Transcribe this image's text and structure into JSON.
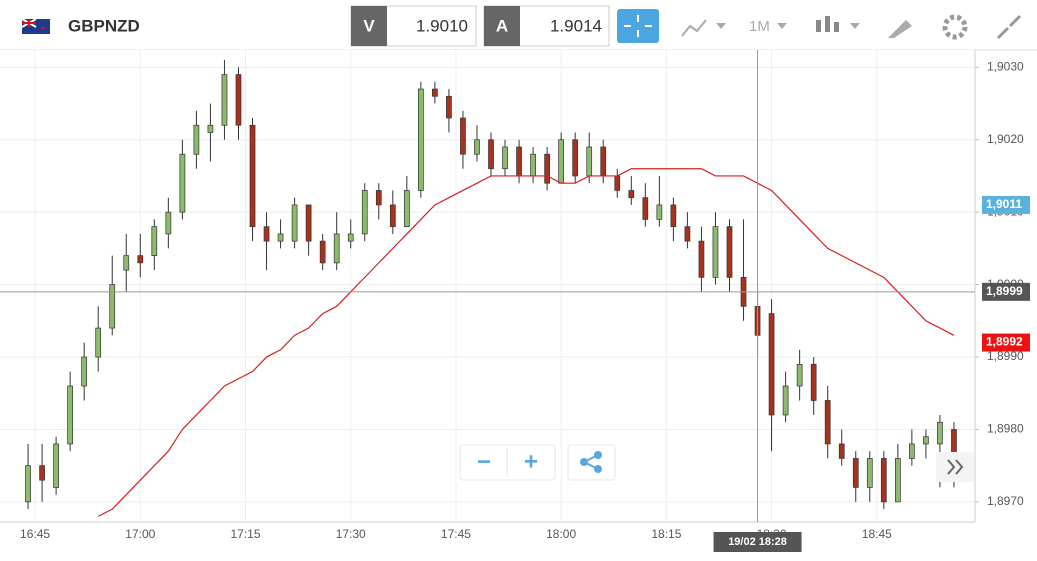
{
  "toolbar": {
    "symbol": "GBPNZD",
    "bid_label": "V",
    "bid": "1.9010",
    "ask_label": "A",
    "ask": "1.9014",
    "timeframe": "1M"
  },
  "zoom_buttons": {
    "minus": "−",
    "plus": "+"
  },
  "chart_data": {
    "type": "candlestick",
    "x": [
      "16:44",
      "16:46",
      "16:48",
      "16:50",
      "16:52",
      "16:54",
      "16:56",
      "16:58",
      "17:00",
      "17:02",
      "17:04",
      "17:06",
      "17:08",
      "17:10",
      "17:12",
      "17:14",
      "17:16",
      "17:18",
      "17:20",
      "17:22",
      "17:24",
      "17:26",
      "17:28",
      "17:30",
      "17:32",
      "17:34",
      "17:36",
      "17:38",
      "17:40",
      "17:42",
      "17:44",
      "17:46",
      "17:48",
      "17:50",
      "17:52",
      "17:54",
      "17:56",
      "17:58",
      "18:00",
      "18:02",
      "18:04",
      "18:06",
      "18:08",
      "18:10",
      "18:12",
      "18:14",
      "18:16",
      "18:18",
      "18:20",
      "18:22",
      "18:24",
      "18:26",
      "18:28",
      "18:30",
      "18:32",
      "18:34",
      "18:36",
      "18:38",
      "18:40",
      "18:42",
      "18:44",
      "18:46",
      "18:48",
      "18:50",
      "18:52",
      "18:54",
      "18:56"
    ],
    "open": [
      1.897,
      1.8975,
      1.8972,
      1.8978,
      1.8986,
      1.899,
      1.8994,
      1.9002,
      1.9004,
      1.9004,
      1.9007,
      1.901,
      1.9018,
      1.9021,
      1.9022,
      1.9029,
      1.9022,
      1.9008,
      1.9006,
      1.9006,
      1.9011,
      1.9006,
      1.9003,
      1.9006,
      1.9007,
      1.9013,
      1.9011,
      1.9008,
      1.9013,
      1.9027,
      1.9026,
      1.9023,
      1.9018,
      1.902,
      1.9016,
      1.9019,
      1.9015,
      1.9018,
      1.9014,
      1.902,
      1.9015,
      1.9019,
      1.9015,
      1.9013,
      1.9012,
      1.9009,
      1.9011,
      1.9008,
      1.9006,
      1.9001,
      1.9008,
      1.9001,
      1.8997,
      1.8996,
      1.8982,
      1.8986,
      1.8989,
      1.8984,
      1.8978,
      1.8976,
      1.8972,
      1.8976,
      1.897,
      1.8976,
      1.8978,
      1.8978,
      1.898
    ],
    "high": [
      1.8978,
      1.8978,
      1.8979,
      1.8988,
      1.8992,
      1.8997,
      1.9004,
      1.9007,
      1.9007,
      1.9009,
      1.9012,
      1.902,
      1.9024,
      1.9025,
      1.9031,
      1.903,
      1.9023,
      1.901,
      1.9009,
      1.9012,
      1.9011,
      1.9007,
      1.901,
      1.9009,
      1.9014,
      1.9014,
      1.9013,
      1.9015,
      1.9028,
      1.9028,
      1.9027,
      1.9024,
      1.9022,
      1.9021,
      1.902,
      1.902,
      1.9019,
      1.9019,
      1.9021,
      1.9021,
      1.9021,
      1.902,
      1.9016,
      1.9015,
      1.9014,
      1.9015,
      1.9012,
      1.901,
      1.9008,
      1.901,
      1.9009,
      1.9009,
      1.8999,
      1.8998,
      1.8988,
      1.8991,
      1.899,
      1.8986,
      1.898,
      1.8977,
      1.8977,
      1.8977,
      1.8978,
      1.898,
      1.898,
      1.8982,
      1.8981
    ],
    "low": [
      1.8969,
      1.897,
      1.8971,
      1.8977,
      1.8984,
      1.8988,
      1.8993,
      1.8999,
      1.9001,
      1.9002,
      1.9005,
      1.9009,
      1.9016,
      1.9017,
      1.902,
      1.902,
      1.9006,
      1.9002,
      1.9005,
      1.9005,
      1.9004,
      1.9002,
      1.9002,
      1.9005,
      1.9006,
      1.9009,
      1.9007,
      1.9008,
      1.9012,
      1.9025,
      1.9021,
      1.9016,
      1.9017,
      1.9015,
      1.9015,
      1.9014,
      1.9014,
      1.9013,
      1.9014,
      1.9014,
      1.9014,
      1.9014,
      1.9012,
      1.9011,
      1.9008,
      1.9008,
      1.9006,
      1.9005,
      1.8999,
      1.9,
      1.8999,
      1.8995,
      1.899,
      1.8977,
      1.8981,
      1.8984,
      1.8982,
      1.8976,
      1.8975,
      1.897,
      1.897,
      1.8969,
      1.897,
      1.8975,
      1.8976,
      1.8972,
      1.8972
    ],
    "close": [
      1.8975,
      1.8973,
      1.8978,
      1.8986,
      1.899,
      1.8994,
      1.9,
      1.9004,
      1.9003,
      1.9008,
      1.901,
      1.9018,
      1.9022,
      1.9022,
      1.9029,
      1.9022,
      1.9008,
      1.9006,
      1.9007,
      1.9011,
      1.9006,
      1.9003,
      1.9007,
      1.9007,
      1.9013,
      1.9011,
      1.9008,
      1.9013,
      1.9027,
      1.9026,
      1.9023,
      1.9018,
      1.902,
      1.9016,
      1.9019,
      1.9015,
      1.9018,
      1.9014,
      1.902,
      1.9015,
      1.9019,
      1.9015,
      1.9013,
      1.9012,
      1.9009,
      1.9011,
      1.9008,
      1.9006,
      1.9001,
      1.9008,
      1.9001,
      1.8997,
      1.8993,
      1.8982,
      1.8986,
      1.8989,
      1.8984,
      1.8978,
      1.8976,
      1.8972,
      1.8976,
      1.897,
      1.8976,
      1.8978,
      1.8979,
      1.8981,
      1.8973
    ],
    "up_color": "#8dbb6e",
    "down_color": "#a8321d",
    "moving_average": {
      "color": "#d42020",
      "values": [
        null,
        null,
        null,
        null,
        null,
        1.8968,
        1.8969,
        1.8971,
        1.8973,
        1.8975,
        1.8977,
        1.898,
        1.8982,
        1.8984,
        1.8986,
        1.8987,
        1.8988,
        1.899,
        1.8991,
        1.8993,
        1.8994,
        1.8996,
        1.8997,
        1.8999,
        1.9001,
        1.9003,
        1.9005,
        1.9007,
        1.9009,
        1.9011,
        1.9012,
        1.9013,
        1.9014,
        1.9015,
        1.9015,
        1.9015,
        1.9015,
        1.9015,
        1.9014,
        1.9014,
        1.9015,
        1.9015,
        1.9015,
        1.9016,
        1.9016,
        1.9016,
        1.9016,
        1.9016,
        1.9016,
        1.9015,
        1.9015,
        1.9015,
        1.9014,
        1.9013,
        1.9011,
        1.9009,
        1.9007,
        1.9005,
        1.9004,
        1.9003,
        1.9002,
        1.9001,
        1.8999,
        1.8997,
        1.8995,
        1.8994,
        1.8993
      ]
    },
    "xticks": [
      "16:45",
      "17:00",
      "17:15",
      "17:30",
      "17:45",
      "18:00",
      "18:15",
      "18:30",
      "18:45"
    ],
    "xlim": [
      "16:40",
      "18:59"
    ],
    "ylim": [
      1.89675,
      1.90317
    ],
    "yticks": [
      {
        "value": 1.897,
        "label": "1,8970"
      },
      {
        "value": 1.898,
        "label": "1,8980"
      },
      {
        "value": 1.899,
        "label": "1,8990"
      },
      {
        "value": 1.9,
        "label": "1,9000"
      },
      {
        "value": 1.901,
        "label": "1,9010"
      },
      {
        "value": 1.902,
        "label": "1,9020"
      },
      {
        "value": 1.903,
        "label": "1,9030"
      }
    ],
    "grid": true,
    "price_markers": [
      {
        "value": 1.9011,
        "label": "1,9011",
        "color": "#5bb1de"
      },
      {
        "value": 1.8992,
        "label": "1,8992",
        "color": "#ee1111"
      }
    ],
    "crosshair": {
      "x": "18:28",
      "x_label": "19/02 18:28",
      "y": 1.8999,
      "y_label": "1,8999"
    }
  }
}
